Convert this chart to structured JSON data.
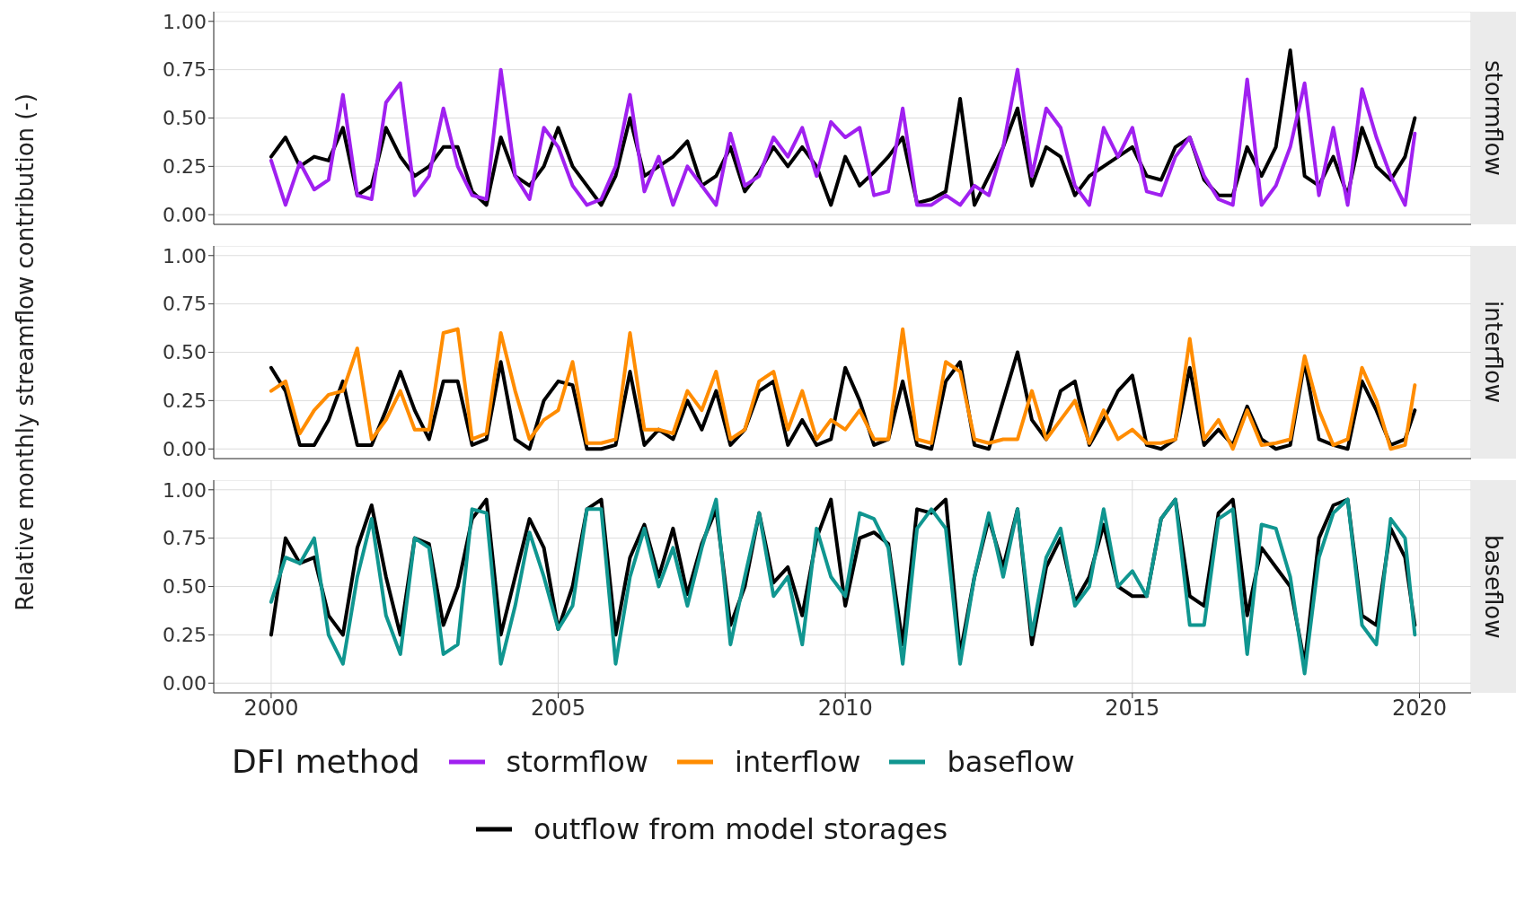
{
  "chart_data": [
    {
      "type": "line",
      "title": "stormflow",
      "x": [
        2000,
        2000.25,
        2000.5,
        2000.75,
        2001,
        2001.25,
        2001.5,
        2001.75,
        2002,
        2002.25,
        2002.5,
        2002.75,
        2003,
        2003.25,
        2003.5,
        2003.75,
        2004,
        2004.25,
        2004.5,
        2004.75,
        2005,
        2005.25,
        2005.5,
        2005.75,
        2006,
        2006.25,
        2006.5,
        2006.75,
        2007,
        2007.25,
        2007.5,
        2007.75,
        2008,
        2008.25,
        2008.5,
        2008.75,
        2009,
        2009.25,
        2009.5,
        2009.75,
        2010,
        2010.25,
        2010.5,
        2010.75,
        2011,
        2011.25,
        2011.5,
        2011.75,
        2012,
        2012.25,
        2012.5,
        2012.75,
        2013,
        2013.25,
        2013.5,
        2013.75,
        2014,
        2014.25,
        2014.5,
        2014.75,
        2015,
        2015.25,
        2015.5,
        2015.75,
        2016,
        2016.25,
        2016.5,
        2016.75,
        2017,
        2017.25,
        2017.5,
        2017.75,
        2018,
        2018.25,
        2018.5,
        2018.75,
        2019,
        2019.25,
        2019.5,
        2019.75,
        2019.92
      ],
      "xlim": [
        1999,
        2020.9
      ],
      "xticks": [
        2000,
        2005,
        2010,
        2015,
        2020
      ],
      "ylim": [
        -0.05,
        1.05
      ],
      "yticks": [
        {
          "value": 0,
          "label": "0.00"
        },
        {
          "value": 0.25,
          "label": "0.25"
        },
        {
          "value": 0.5,
          "label": "0.50"
        },
        {
          "value": 0.75,
          "label": "0.75"
        },
        {
          "value": 1,
          "label": "1.00"
        }
      ],
      "grid": true,
      "tick_labels": "y",
      "line_style": "solid",
      "series": [
        {
          "color": "#000000",
          "values": [
            0.3,
            0.4,
            0.25,
            0.3,
            0.28,
            0.45,
            0.1,
            0.15,
            0.45,
            0.3,
            0.2,
            0.25,
            0.35,
            0.35,
            0.12,
            0.05,
            0.4,
            0.2,
            0.15,
            0.25,
            0.45,
            0.25,
            0.15,
            0.05,
            0.2,
            0.5,
            0.2,
            0.25,
            0.3,
            0.38,
            0.15,
            0.2,
            0.35,
            0.12,
            0.22,
            0.35,
            0.25,
            0.35,
            0.25,
            0.05,
            0.3,
            0.15,
            0.22,
            0.3,
            0.4,
            0.06,
            0.08,
            0.12,
            0.6,
            0.05,
            0.2,
            0.35,
            0.55,
            0.15,
            0.35,
            0.3,
            0.1,
            0.2,
            0.25,
            0.3,
            0.35,
            0.2,
            0.18,
            0.35,
            0.4,
            0.18,
            0.1,
            0.1,
            0.35,
            0.2,
            0.35,
            0.85,
            0.2,
            0.15,
            0.3,
            0.1,
            0.45,
            0.25,
            0.18,
            0.3,
            0.5
          ]
        },
        {
          "name": "stormflow",
          "color": "#a020f0",
          "values": [
            0.28,
            0.05,
            0.27,
            0.13,
            0.18,
            0.62,
            0.1,
            0.08,
            0.58,
            0.68,
            0.1,
            0.2,
            0.55,
            0.25,
            0.1,
            0.08,
            0.75,
            0.2,
            0.08,
            0.45,
            0.35,
            0.15,
            0.05,
            0.08,
            0.25,
            0.62,
            0.12,
            0.3,
            0.05,
            0.25,
            0.15,
            0.05,
            0.42,
            0.15,
            0.2,
            0.4,
            0.3,
            0.45,
            0.2,
            0.48,
            0.4,
            0.45,
            0.1,
            0.12,
            0.55,
            0.05,
            0.05,
            0.1,
            0.05,
            0.15,
            0.1,
            0.35,
            0.75,
            0.2,
            0.55,
            0.45,
            0.15,
            0.05,
            0.45,
            0.3,
            0.45,
            0.12,
            0.1,
            0.3,
            0.4,
            0.2,
            0.08,
            0.05,
            0.7,
            0.05,
            0.15,
            0.35,
            0.68,
            0.1,
            0.45,
            0.05,
            0.65,
            0.4,
            0.2,
            0.05,
            0.42
          ]
        }
      ]
    },
    {
      "type": "line",
      "title": "interflow",
      "ylabel": "Relative monthly streamflow contribution (-)",
      "x": [
        2000,
        2000.25,
        2000.5,
        2000.75,
        2001,
        2001.25,
        2001.5,
        2001.75,
        2002,
        2002.25,
        2002.5,
        2002.75,
        2003,
        2003.25,
        2003.5,
        2003.75,
        2004,
        2004.25,
        2004.5,
        2004.75,
        2005,
        2005.25,
        2005.5,
        2005.75,
        2006,
        2006.25,
        2006.5,
        2006.75,
        2007,
        2007.25,
        2007.5,
        2007.75,
        2008,
        2008.25,
        2008.5,
        2008.75,
        2009,
        2009.25,
        2009.5,
        2009.75,
        2010,
        2010.25,
        2010.5,
        2010.75,
        2011,
        2011.25,
        2011.5,
        2011.75,
        2012,
        2012.25,
        2012.5,
        2012.75,
        2013,
        2013.25,
        2013.5,
        2013.75,
        2014,
        2014.25,
        2014.5,
        2014.75,
        2015,
        2015.25,
        2015.5,
        2015.75,
        2016,
        2016.25,
        2016.5,
        2016.75,
        2017,
        2017.25,
        2017.5,
        2017.75,
        2018,
        2018.25,
        2018.5,
        2018.75,
        2019,
        2019.25,
        2019.5,
        2019.75,
        2019.92
      ],
      "xlim": [
        1999,
        2020.9
      ],
      "xticks": [
        2000,
        2005,
        2010,
        2015,
        2020
      ],
      "ylim": [
        -0.05,
        1.05
      ],
      "yticks": [
        {
          "value": 0,
          "label": "0.00"
        },
        {
          "value": 0.25,
          "label": "0.25"
        },
        {
          "value": 0.5,
          "label": "0.50"
        },
        {
          "value": 0.75,
          "label": "0.75"
        },
        {
          "value": 1,
          "label": "1.00"
        }
      ],
      "grid": true,
      "tick_labels": "y",
      "line_style": "solid",
      "series": [
        {
          "color": "#000000",
          "values": [
            0.42,
            0.3,
            0.02,
            0.02,
            0.15,
            0.35,
            0.02,
            0.02,
            0.2,
            0.4,
            0.2,
            0.05,
            0.35,
            0.35,
            0.02,
            0.05,
            0.45,
            0.05,
            0,
            0.25,
            0.35,
            0.33,
            0,
            0,
            0.02,
            0.4,
            0.02,
            0.1,
            0.05,
            0.25,
            0.1,
            0.3,
            0.02,
            0.1,
            0.3,
            0.35,
            0.02,
            0.15,
            0.02,
            0.05,
            0.42,
            0.25,
            0.02,
            0.05,
            0.35,
            0.02,
            0,
            0.35,
            0.45,
            0.02,
            0,
            0.25,
            0.5,
            0.15,
            0.05,
            0.3,
            0.35,
            0.02,
            0.15,
            0.3,
            0.38,
            0.02,
            0,
            0.05,
            0.42,
            0.02,
            0.1,
            0.02,
            0.22,
            0.05,
            0,
            0.02,
            0.45,
            0.05,
            0.02,
            0,
            0.35,
            0.2,
            0.02,
            0.05,
            0.2
          ]
        },
        {
          "name": "interflow",
          "color": "#ff8c00",
          "values": [
            0.3,
            0.35,
            0.08,
            0.2,
            0.28,
            0.3,
            0.52,
            0.05,
            0.15,
            0.3,
            0.1,
            0.1,
            0.6,
            0.62,
            0.05,
            0.08,
            0.6,
            0.3,
            0.05,
            0.15,
            0.2,
            0.45,
            0.03,
            0.03,
            0.05,
            0.6,
            0.1,
            0.1,
            0.08,
            0.3,
            0.2,
            0.4,
            0.05,
            0.1,
            0.35,
            0.4,
            0.1,
            0.3,
            0.05,
            0.15,
            0.1,
            0.2,
            0.05,
            0.05,
            0.62,
            0.05,
            0.03,
            0.45,
            0.4,
            0.05,
            0.03,
            0.05,
            0.05,
            0.3,
            0.05,
            0.15,
            0.25,
            0.03,
            0.2,
            0.05,
            0.1,
            0.03,
            0.03,
            0.05,
            0.57,
            0.05,
            0.15,
            0,
            0.2,
            0.02,
            0.03,
            0.05,
            0.48,
            0.2,
            0.02,
            0.05,
            0.42,
            0.25,
            0,
            0.02,
            0.33
          ]
        }
      ]
    },
    {
      "type": "line",
      "title": "baseflow",
      "legend": "bottom",
      "legend_title": "DFI method",
      "x": [
        2000,
        2000.25,
        2000.5,
        2000.75,
        2001,
        2001.25,
        2001.5,
        2001.75,
        2002,
        2002.25,
        2002.5,
        2002.75,
        2003,
        2003.25,
        2003.5,
        2003.75,
        2004,
        2004.25,
        2004.5,
        2004.75,
        2005,
        2005.25,
        2005.5,
        2005.75,
        2006,
        2006.25,
        2006.5,
        2006.75,
        2007,
        2007.25,
        2007.5,
        2007.75,
        2008,
        2008.25,
        2008.5,
        2008.75,
        2009,
        2009.25,
        2009.5,
        2009.75,
        2010,
        2010.25,
        2010.5,
        2010.75,
        2011,
        2011.25,
        2011.5,
        2011.75,
        2012,
        2012.25,
        2012.5,
        2012.75,
        2013,
        2013.25,
        2013.5,
        2013.75,
        2014,
        2014.25,
        2014.5,
        2014.75,
        2015,
        2015.25,
        2015.5,
        2015.75,
        2016,
        2016.25,
        2016.5,
        2016.75,
        2017,
        2017.25,
        2017.5,
        2017.75,
        2018,
        2018.25,
        2018.5,
        2018.75,
        2019,
        2019.25,
        2019.5,
        2019.75,
        2019.92
      ],
      "xlim": [
        1999,
        2020.9
      ],
      "xticks": [
        2000,
        2005,
        2010,
        2015,
        2020
      ],
      "ylim": [
        -0.05,
        1.05
      ],
      "yticks": [
        {
          "value": 0,
          "label": "0.00"
        },
        {
          "value": 0.25,
          "label": "0.25"
        },
        {
          "value": 0.5,
          "label": "0.50"
        },
        {
          "value": 0.75,
          "label": "0.75"
        },
        {
          "value": 1,
          "label": "1.00"
        }
      ],
      "grid": true,
      "line_style": "solid",
      "series": [
        {
          "name": "outflow from model storages",
          "color": "#000000",
          "values": [
            0.25,
            0.75,
            0.62,
            0.65,
            0.35,
            0.25,
            0.7,
            0.92,
            0.55,
            0.25,
            0.75,
            0.72,
            0.3,
            0.5,
            0.85,
            0.95,
            0.25,
            0.55,
            0.85,
            0.7,
            0.28,
            0.5,
            0.9,
            0.95,
            0.25,
            0.65,
            0.82,
            0.55,
            0.8,
            0.46,
            0.72,
            0.9,
            0.3,
            0.5,
            0.88,
            0.52,
            0.6,
            0.35,
            0.75,
            0.95,
            0.4,
            0.75,
            0.78,
            0.72,
            0.2,
            0.9,
            0.88,
            0.95,
            0.15,
            0.55,
            0.85,
            0.6,
            0.9,
            0.2,
            0.6,
            0.75,
            0.42,
            0.55,
            0.82,
            0.5,
            0.45,
            0.45,
            0.85,
            0.95,
            0.45,
            0.4,
            0.88,
            0.95,
            0.35,
            0.7,
            0.6,
            0.5,
            0.1,
            0.75,
            0.92,
            0.95,
            0.35,
            0.3,
            0.8,
            0.65,
            0.3
          ]
        },
        {
          "name": "baseflow",
          "color": "#109690",
          "values": [
            0.42,
            0.65,
            0.62,
            0.75,
            0.25,
            0.1,
            0.55,
            0.85,
            0.35,
            0.15,
            0.75,
            0.7,
            0.15,
            0.2,
            0.9,
            0.88,
            0.1,
            0.4,
            0.78,
            0.55,
            0.28,
            0.4,
            0.9,
            0.9,
            0.1,
            0.55,
            0.8,
            0.5,
            0.7,
            0.4,
            0.7,
            0.95,
            0.2,
            0.55,
            0.88,
            0.45,
            0.55,
            0.2,
            0.8,
            0.55,
            0.45,
            0.88,
            0.85,
            0.7,
            0.1,
            0.8,
            0.9,
            0.8,
            0.1,
            0.55,
            0.88,
            0.55,
            0.9,
            0.25,
            0.65,
            0.8,
            0.4,
            0.5,
            0.9,
            0.5,
            0.58,
            0.45,
            0.85,
            0.95,
            0.3,
            0.3,
            0.85,
            0.9,
            0.15,
            0.82,
            0.8,
            0.55,
            0.05,
            0.65,
            0.88,
            0.95,
            0.3,
            0.2,
            0.85,
            0.75,
            0.25
          ]
        }
      ]
    }
  ]
}
